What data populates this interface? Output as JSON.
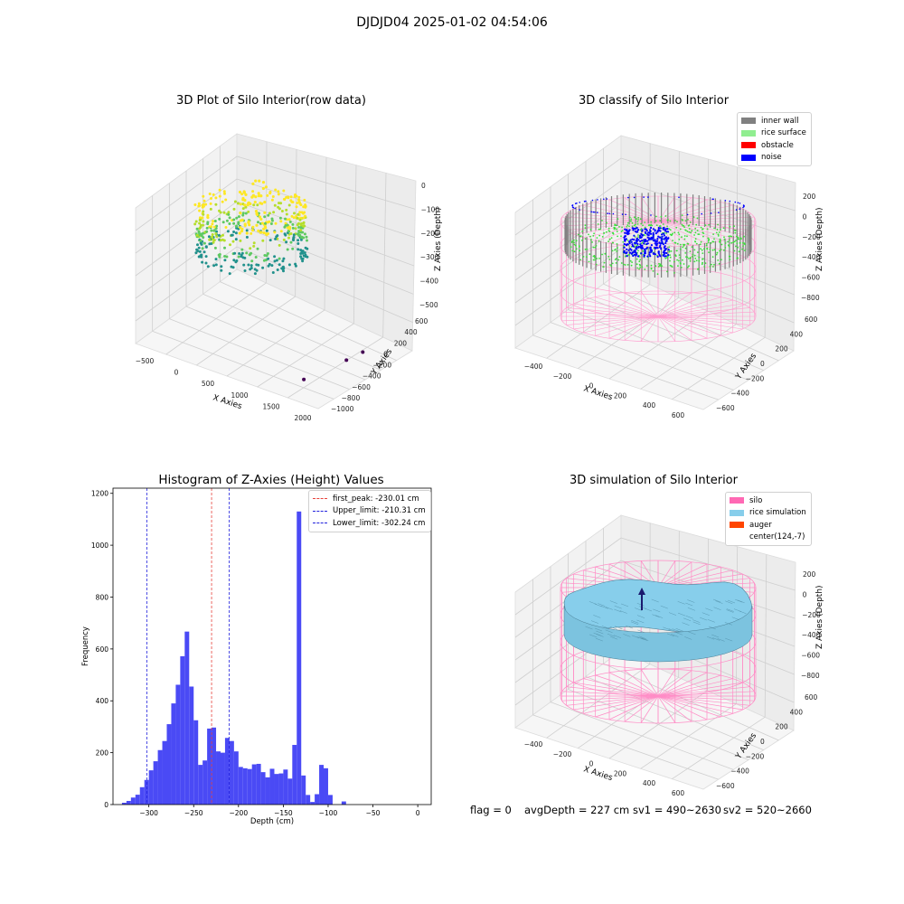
{
  "figure": {
    "suptitle": "DJDJD04 2025-01-02 04:54:06",
    "footer": {
      "flag": "flag = 0",
      "avg_depth": "avgDepth = 227 cm",
      "sv1": "sv1 = 490~2630",
      "sv2": "sv2 = 520~2660"
    }
  },
  "colors": {
    "histogram_bar": "#4a4af5",
    "first_peak_line": "#e8423c",
    "limit_line": "#2222dd",
    "inner_wall": "#808080",
    "rice_surface": "#90ee90",
    "obstacle": "#ff0000",
    "noise": "#0000ff",
    "silo": "#ff69b4",
    "rice_simulation": "#87ceeb",
    "auger": "#ff4500"
  },
  "chart_data": [
    {
      "type": "scatter",
      "title": "3D Plot of Silo Interior(row data)",
      "xlabel": "X Axies",
      "ylabel": "Y Axies",
      "zlabel": "Z Axies (Depth)",
      "x_ticks": [
        "−500",
        "0",
        "500",
        "1000",
        "1500",
        "2000"
      ],
      "y_ticks": [
        "−1000",
        "−800",
        "−600",
        "−400",
        "−200",
        "0",
        "200",
        "400",
        "600"
      ],
      "z_ticks": [
        "0",
        "−100",
        "−200",
        "−300",
        "−400",
        "−500"
      ],
      "outliers": [
        {
          "x": 1500,
          "y": -650,
          "z": -500
        },
        {
          "x": 1650,
          "y": -150,
          "z": -500
        },
        {
          "x": 1700,
          "y": 50,
          "z": -500
        }
      ]
    },
    {
      "type": "scatter",
      "title": "3D classify of Silo Interior",
      "xlabel": "X Axies",
      "ylabel": "Y Axies",
      "zlabel": "Z Axies (Depth)",
      "x_ticks": [
        "−400",
        "−200",
        "0",
        "200",
        "400",
        "600"
      ],
      "y_ticks": [
        "−600",
        "−400",
        "−200",
        "0",
        "200",
        "400",
        "600"
      ],
      "z_ticks": [
        "200",
        "0",
        "−200",
        "−400",
        "−600",
        "−800"
      ],
      "legend": [
        "inner wall",
        "rice surface",
        "obstacle",
        "noise"
      ],
      "legend_position": "upper-right"
    },
    {
      "type": "bar",
      "title": "Histogram of Z-Axies (Height) Values",
      "xlabel": "Depth (cm)",
      "ylabel": "Frequency",
      "xlim": [
        -340,
        15
      ],
      "ylim": [
        0,
        1220
      ],
      "x_ticks": [
        -300,
        -250,
        -200,
        -150,
        -100,
        -50,
        0
      ],
      "y_ticks": [
        0,
        200,
        400,
        600,
        800,
        1000,
        1200
      ],
      "bin_start": -330,
      "bin_width": 5,
      "values": [
        7,
        14,
        27,
        38,
        67,
        95,
        132,
        167,
        210,
        245,
        310,
        390,
        462,
        572,
        667,
        455,
        325,
        153,
        170,
        293,
        297,
        205,
        200,
        257,
        245,
        205,
        145,
        140,
        137,
        155,
        157,
        125,
        105,
        138,
        118,
        120,
        135,
        100,
        230,
        1130,
        112,
        37,
        10,
        40,
        153,
        140,
        37,
        0,
        0,
        12,
        0
      ],
      "vlines": [
        {
          "label": "first_peak: -230.01 cm",
          "x": -230.01,
          "kind": "first_peak"
        },
        {
          "label": "Upper_limit: -210.31 cm",
          "x": -210.31,
          "kind": "limit"
        },
        {
          "label": "Lower_limit: -302.24 cm",
          "x": -302.24,
          "kind": "limit"
        }
      ],
      "legend_position": "upper-right"
    },
    {
      "type": "surface",
      "title": "3D simulation of Silo Interior",
      "xlabel": "X Axies",
      "ylabel": "Y Axies",
      "zlabel": "Z Axies (Depth)",
      "x_ticks": [
        "−400",
        "−200",
        "0",
        "200",
        "400",
        "600"
      ],
      "y_ticks": [
        "−600",
        "−400",
        "−200",
        "0",
        "200",
        "400",
        "600"
      ],
      "z_ticks": [
        "200",
        "0",
        "−200",
        "−400",
        "−600",
        "−800"
      ],
      "legend": [
        "silo",
        "rice simulation",
        "auger",
        "center(124,-7)"
      ],
      "legend_position": "upper-right"
    }
  ]
}
